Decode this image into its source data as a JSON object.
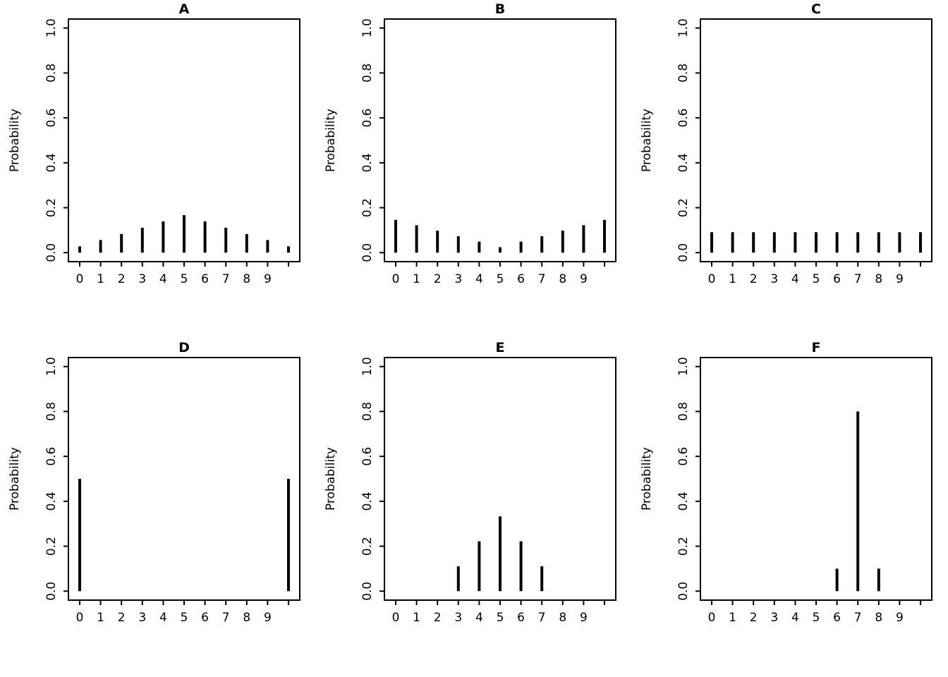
{
  "figure": {
    "background": "#ffffff",
    "ink_color": "#000000",
    "panel_count": 6
  },
  "chart_data": [
    {
      "type": "bar",
      "title": "A",
      "ylabel": "Probability",
      "xlabel": "",
      "x": [
        0,
        1,
        2,
        3,
        4,
        5,
        6,
        7,
        8,
        9,
        10
      ],
      "x_tick_labels": [
        "0",
        "1",
        "2",
        "3",
        "4",
        "5",
        "6",
        "7",
        "8",
        "9",
        ""
      ],
      "values": [
        0.028,
        0.056,
        0.083,
        0.111,
        0.139,
        0.167,
        0.139,
        0.111,
        0.083,
        0.056,
        0.028
      ],
      "ylim": [
        0,
        1
      ],
      "yticks": [
        "0.0",
        "0.2",
        "0.4",
        "0.6",
        "0.8",
        "1.0"
      ],
      "grid": false,
      "legend": "none"
    },
    {
      "type": "bar",
      "title": "B",
      "ylabel": "Probability",
      "xlabel": "",
      "x": [
        0,
        1,
        2,
        3,
        4,
        5,
        6,
        7,
        8,
        9,
        10
      ],
      "x_tick_labels": [
        "0",
        "1",
        "2",
        "3",
        "4",
        "5",
        "6",
        "7",
        "8",
        "9",
        ""
      ],
      "values": [
        0.146,
        0.122,
        0.098,
        0.073,
        0.049,
        0.024,
        0.049,
        0.073,
        0.098,
        0.122,
        0.146
      ],
      "ylim": [
        0,
        1
      ],
      "yticks": [
        "0.0",
        "0.2",
        "0.4",
        "0.6",
        "0.8",
        "1.0"
      ],
      "grid": false,
      "legend": "none"
    },
    {
      "type": "bar",
      "title": "C",
      "ylabel": "Probability",
      "xlabel": "",
      "x": [
        0,
        1,
        2,
        3,
        4,
        5,
        6,
        7,
        8,
        9,
        10
      ],
      "x_tick_labels": [
        "0",
        "1",
        "2",
        "3",
        "4",
        "5",
        "6",
        "7",
        "8",
        "9",
        ""
      ],
      "values": [
        0.091,
        0.091,
        0.091,
        0.091,
        0.091,
        0.091,
        0.091,
        0.091,
        0.091,
        0.091,
        0.091
      ],
      "ylim": [
        0,
        1
      ],
      "yticks": [
        "0.0",
        "0.2",
        "0.4",
        "0.6",
        "0.8",
        "1.0"
      ],
      "grid": false,
      "legend": "none"
    },
    {
      "type": "bar",
      "title": "D",
      "ylabel": "Probability",
      "xlabel": "",
      "x": [
        0,
        1,
        2,
        3,
        4,
        5,
        6,
        7,
        8,
        9,
        10
      ],
      "x_tick_labels": [
        "0",
        "1",
        "2",
        "3",
        "4",
        "5",
        "6",
        "7",
        "8",
        "9",
        ""
      ],
      "values": [
        0.5,
        0,
        0,
        0,
        0,
        0,
        0,
        0,
        0,
        0,
        0.5
      ],
      "ylim": [
        0,
        1
      ],
      "yticks": [
        "0.0",
        "0.2",
        "0.4",
        "0.6",
        "0.8",
        "1.0"
      ],
      "grid": false,
      "legend": "none"
    },
    {
      "type": "bar",
      "title": "E",
      "ylabel": "Probability",
      "xlabel": "",
      "x": [
        0,
        1,
        2,
        3,
        4,
        5,
        6,
        7,
        8,
        9,
        10
      ],
      "x_tick_labels": [
        "0",
        "1",
        "2",
        "3",
        "4",
        "5",
        "6",
        "7",
        "8",
        "9",
        ""
      ],
      "values": [
        0,
        0,
        0,
        0.111,
        0.222,
        0.333,
        0.222,
        0.111,
        0,
        0,
        0
      ],
      "ylim": [
        0,
        1
      ],
      "yticks": [
        "0.0",
        "0.2",
        "0.4",
        "0.6",
        "0.8",
        "1.0"
      ],
      "grid": false,
      "legend": "none"
    },
    {
      "type": "bar",
      "title": "F",
      "ylabel": "Probability",
      "xlabel": "",
      "x": [
        0,
        1,
        2,
        3,
        4,
        5,
        6,
        7,
        8,
        9,
        10
      ],
      "x_tick_labels": [
        "0",
        "1",
        "2",
        "3",
        "4",
        "5",
        "6",
        "7",
        "8",
        "9",
        ""
      ],
      "values": [
        0,
        0,
        0,
        0,
        0,
        0,
        0.1,
        0.8,
        0.1,
        0,
        0
      ],
      "ylim": [
        0,
        1
      ],
      "yticks": [
        "0.0",
        "0.2",
        "0.4",
        "0.6",
        "0.8",
        "1.0"
      ],
      "grid": false,
      "legend": "none"
    }
  ]
}
